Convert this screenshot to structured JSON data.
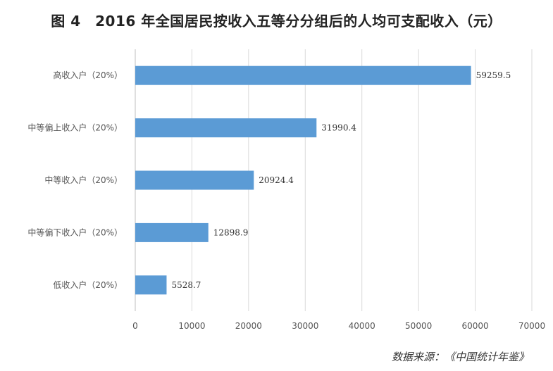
{
  "title": "图 4　2016 年全国居民按收入五等分分组后的人均可支配收入（元）",
  "source": "数据来源：《中国统计年鉴》",
  "colors": {
    "bar": "#5b9bd5",
    "grid": "#d9d9d9",
    "axis": "#bfbfbf"
  },
  "chart_data": {
    "type": "bar",
    "orientation": "horizontal",
    "title": "图 4　2016 年全国居民按收入五等分分组后的人均可支配收入（元）",
    "categories": [
      "高收入户（20%）",
      "中等偏上收入户（20%）",
      "中等收入户（20%）",
      "中等偏下收入户（20%）",
      "低收入户（20%）"
    ],
    "values": [
      59259.5,
      31990.4,
      20924.4,
      12898.9,
      5528.7
    ],
    "value_labels": [
      "59259.5",
      "31990.4",
      "20924.4",
      "12898.9",
      "5528.7"
    ],
    "xlim": [
      0,
      70000
    ],
    "xticks": [
      0,
      10000,
      20000,
      30000,
      40000,
      50000,
      60000,
      70000
    ],
    "xlabel": "",
    "ylabel": "",
    "grid": true,
    "legend": "none"
  }
}
